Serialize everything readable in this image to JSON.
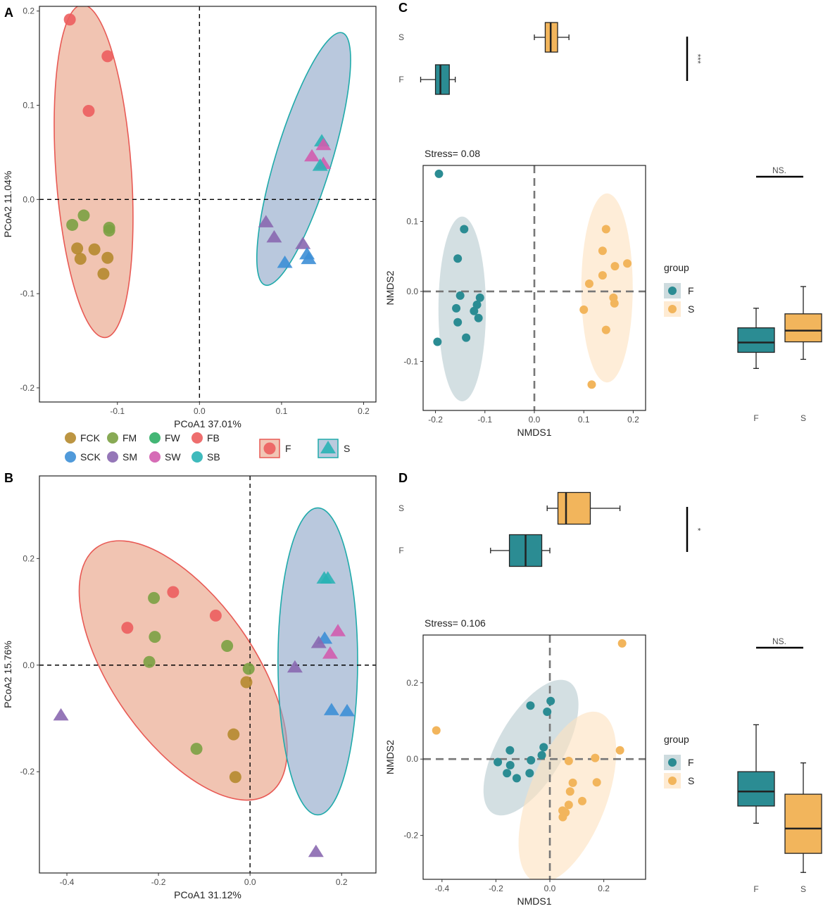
{
  "chart_data": [
    {
      "panel": "A",
      "type": "scatter",
      "title": "",
      "xlabel": "PCoA1 37.01%",
      "ylabel": "PCoA2 11.04%",
      "xlim": [
        -0.195,
        0.215
      ],
      "ylim": [
        -0.215,
        0.205
      ],
      "xticks": [
        -0.1,
        0.0,
        0.1,
        0.2
      ],
      "xtick_labels": [
        "-0.1",
        "0.0",
        "0.1",
        "0.2"
      ],
      "yticks": [
        -0.2,
        -0.1,
        0.0,
        0.1,
        0.2
      ],
      "ytick_labels": [
        "-0.2",
        "-0.1",
        "0.0",
        "0.1",
        "0.2"
      ],
      "ellipses": [
        {
          "group": "F",
          "cx": -0.129,
          "cy": 0.03,
          "rx": 0.046,
          "ry": 0.177,
          "angle_deg": -4
        },
        {
          "group": "S",
          "cx": 0.127,
          "cy": 0.043,
          "rx": 0.034,
          "ry": 0.14,
          "angle_deg": 17
        }
      ],
      "points": [
        {
          "x": -0.158,
          "y": 0.191,
          "group": "FB"
        },
        {
          "x": -0.112,
          "y": 0.152,
          "group": "FB"
        },
        {
          "x": -0.135,
          "y": 0.094,
          "group": "FB"
        },
        {
          "x": -0.141,
          "y": -0.017,
          "group": "FM"
        },
        {
          "x": -0.155,
          "y": -0.027,
          "group": "FM"
        },
        {
          "x": -0.11,
          "y": -0.03,
          "group": "FM"
        },
        {
          "x": -0.11,
          "y": -0.033,
          "group": "FM"
        },
        {
          "x": -0.149,
          "y": -0.052,
          "group": "FCK"
        },
        {
          "x": -0.128,
          "y": -0.053,
          "group": "FCK"
        },
        {
          "x": -0.145,
          "y": -0.063,
          "group": "FCK"
        },
        {
          "x": -0.112,
          "y": -0.062,
          "group": "FCK"
        },
        {
          "x": -0.117,
          "y": -0.079,
          "group": "FCK"
        },
        {
          "x": 0.149,
          "y": 0.062,
          "group": "SB",
          "marker": "triangle"
        },
        {
          "x": 0.151,
          "y": 0.058,
          "group": "SW",
          "marker": "triangle"
        },
        {
          "x": 0.137,
          "y": 0.046,
          "group": "SW",
          "marker": "triangle"
        },
        {
          "x": 0.151,
          "y": 0.038,
          "group": "SW",
          "marker": "triangle"
        },
        {
          "x": 0.147,
          "y": 0.036,
          "group": "SB",
          "marker": "triangle"
        },
        {
          "x": 0.081,
          "y": -0.024,
          "group": "SM",
          "marker": "triangle"
        },
        {
          "x": 0.091,
          "y": -0.04,
          "group": "SM",
          "marker": "triangle"
        },
        {
          "x": 0.126,
          "y": -0.047,
          "group": "SM",
          "marker": "triangle"
        },
        {
          "x": 0.131,
          "y": -0.058,
          "group": "SCK",
          "marker": "triangle"
        },
        {
          "x": 0.133,
          "y": -0.063,
          "group": "SCK",
          "marker": "triangle"
        },
        {
          "x": 0.104,
          "y": -0.067,
          "group": "SCK",
          "marker": "triangle"
        }
      ]
    },
    {
      "panel": "B",
      "type": "scatter",
      "title": "",
      "xlabel": "PCoA1 31.12%",
      "ylabel": "PCoA2 15.76%",
      "xlim": [
        -0.46,
        0.275
      ],
      "ylim": [
        -0.39,
        0.355
      ],
      "xticks": [
        -0.4,
        -0.2,
        0.0,
        0.2
      ],
      "xtick_labels": [
        "-0.4",
        "-0.2",
        "0.0",
        "0.2"
      ],
      "yticks": [
        -0.2,
        0.0,
        0.2
      ],
      "ytick_labels": [
        "-0.2",
        "0.0",
        "0.2"
      ],
      "ellipses": [
        {
          "group": "F",
          "cx": -0.146,
          "cy": -0.01,
          "rx": 0.155,
          "ry": 0.282,
          "angle_deg": -35
        },
        {
          "group": "S",
          "cx": 0.148,
          "cy": 0.007,
          "rx": 0.087,
          "ry": 0.288,
          "angle_deg": 0
        }
      ],
      "points": [
        {
          "x": -0.168,
          "y": 0.137,
          "group": "FB"
        },
        {
          "x": -0.075,
          "y": 0.093,
          "group": "FB"
        },
        {
          "x": -0.268,
          "y": 0.07,
          "group": "FB"
        },
        {
          "x": -0.21,
          "y": 0.126,
          "group": "FM"
        },
        {
          "x": -0.208,
          "y": 0.053,
          "group": "FM"
        },
        {
          "x": -0.05,
          "y": 0.036,
          "group": "FM"
        },
        {
          "x": -0.22,
          "y": 0.006,
          "group": "FM"
        },
        {
          "x": -0.003,
          "y": -0.007,
          "group": "FM"
        },
        {
          "x": -0.117,
          "y": -0.157,
          "group": "FM"
        },
        {
          "x": -0.008,
          "y": -0.032,
          "group": "FCK"
        },
        {
          "x": -0.036,
          "y": -0.13,
          "group": "FCK"
        },
        {
          "x": -0.032,
          "y": -0.21,
          "group": "FCK"
        },
        {
          "x": 0.162,
          "y": 0.163,
          "group": "SB",
          "marker": "triangle"
        },
        {
          "x": 0.17,
          "y": 0.163,
          "group": "SB",
          "marker": "triangle"
        },
        {
          "x": 0.192,
          "y": 0.064,
          "group": "SW",
          "marker": "triangle"
        },
        {
          "x": 0.163,
          "y": 0.05,
          "group": "SCK",
          "marker": "triangle"
        },
        {
          "x": 0.15,
          "y": 0.042,
          "group": "SM",
          "marker": "triangle"
        },
        {
          "x": 0.175,
          "y": 0.022,
          "group": "SW",
          "marker": "triangle"
        },
        {
          "x": 0.098,
          "y": -0.004,
          "group": "SM",
          "marker": "triangle"
        },
        {
          "x": 0.178,
          "y": -0.084,
          "group": "SCK",
          "marker": "triangle"
        },
        {
          "x": 0.212,
          "y": -0.086,
          "group": "SCK",
          "marker": "triangle"
        },
        {
          "x": -0.413,
          "y": -0.094,
          "group": "SM",
          "marker": "triangle"
        },
        {
          "x": 0.144,
          "y": -0.35,
          "group": "SM",
          "marker": "triangle"
        }
      ]
    },
    {
      "panel": "C",
      "type": "scatter",
      "title": "Stress= 0.08",
      "xlabel": "NMDS1",
      "ylabel": "NMDS2",
      "xlim": [
        -0.225,
        0.225
      ],
      "ylim": [
        -0.17,
        0.18
      ],
      "xticks": [
        -0.2,
        -0.1,
        0.0,
        0.1,
        0.2
      ],
      "xtick_labels": [
        "-0.2",
        "-0.1",
        "0.0",
        "0.1",
        "0.2"
      ],
      "yticks": [
        -0.1,
        0.0,
        0.1
      ],
      "ytick_labels": [
        "-0.1",
        "0.0",
        "0.1"
      ],
      "ellipses": [
        {
          "group": "F",
          "cx": -0.146,
          "cy": -0.025,
          "rx": 0.048,
          "ry": 0.132,
          "angle_deg": 0
        },
        {
          "group": "S",
          "cx": 0.147,
          "cy": 0.005,
          "rx": 0.052,
          "ry": 0.135,
          "angle_deg": 0
        }
      ],
      "points": [
        {
          "x": -0.193,
          "y": 0.168,
          "group": "F"
        },
        {
          "x": -0.142,
          "y": 0.089,
          "group": "F"
        },
        {
          "x": -0.155,
          "y": 0.047,
          "group": "F"
        },
        {
          "x": -0.15,
          "y": -0.006,
          "group": "F"
        },
        {
          "x": -0.158,
          "y": -0.024,
          "group": "F"
        },
        {
          "x": -0.155,
          "y": -0.044,
          "group": "F"
        },
        {
          "x": -0.138,
          "y": -0.066,
          "group": "F"
        },
        {
          "x": -0.196,
          "y": -0.072,
          "group": "F"
        },
        {
          "x": -0.11,
          "y": -0.009,
          "group": "F"
        },
        {
          "x": -0.116,
          "y": -0.019,
          "group": "F"
        },
        {
          "x": -0.122,
          "y": -0.028,
          "group": "F"
        },
        {
          "x": -0.113,
          "y": -0.038,
          "group": "F"
        },
        {
          "x": 0.145,
          "y": 0.089,
          "group": "S"
        },
        {
          "x": 0.138,
          "y": 0.058,
          "group": "S"
        },
        {
          "x": 0.188,
          "y": 0.04,
          "group": "S"
        },
        {
          "x": 0.163,
          "y": 0.036,
          "group": "S"
        },
        {
          "x": 0.138,
          "y": 0.023,
          "group": "S"
        },
        {
          "x": 0.111,
          "y": 0.011,
          "group": "S"
        },
        {
          "x": 0.16,
          "y": -0.009,
          "group": "S"
        },
        {
          "x": 0.162,
          "y": -0.017,
          "group": "S"
        },
        {
          "x": 0.1,
          "y": -0.026,
          "group": "S"
        },
        {
          "x": 0.145,
          "y": -0.055,
          "group": "S"
        },
        {
          "x": 0.116,
          "y": -0.133,
          "group": "S"
        }
      ],
      "legend": {
        "title": "group",
        "entries": [
          "F",
          "S"
        ]
      },
      "top_boxplot": {
        "orientation": "horizontal",
        "axis": "NMDS1",
        "categories": [
          "S",
          "F"
        ],
        "boxes": [
          {
            "group": "S",
            "min": 0.0,
            "q1": 0.022,
            "median": 0.033,
            "q3": 0.047,
            "max": 0.07
          },
          {
            "group": "F",
            "min": -0.23,
            "q1": -0.2,
            "median": -0.19,
            "q3": -0.172,
            "max": -0.16
          }
        ],
        "significance": "***"
      },
      "side_boxplot": {
        "orientation": "vertical",
        "axis": "NMDS2",
        "categories": [
          "F",
          "S"
        ],
        "boxes": [
          {
            "group": "F",
            "min": -0.11,
            "q1": -0.087,
            "median": -0.073,
            "q3": -0.052,
            "max": -0.024
          },
          {
            "group": "S",
            "min": -0.097,
            "q1": -0.072,
            "median": -0.056,
            "q3": -0.032,
            "max": 0.007
          }
        ],
        "significance": "NS."
      }
    },
    {
      "panel": "D",
      "type": "scatter",
      "title": "Stress= 0.106",
      "xlabel": "NMDS1",
      "ylabel": "NMDS2",
      "xlim": [
        -0.47,
        0.355
      ],
      "ylim": [
        -0.315,
        0.325
      ],
      "xticks": [
        -0.4,
        -0.2,
        0.0,
        0.2
      ],
      "xtick_labels": [
        "-0.4",
        "-0.2",
        "0.0",
        "0.2"
      ],
      "yticks": [
        -0.2,
        0.0,
        0.2
      ],
      "ytick_labels": [
        "-0.2",
        "0.0",
        "0.2"
      ],
      "ellipses": [
        {
          "group": "F",
          "cx": -0.07,
          "cy": 0.03,
          "rx": 0.122,
          "ry": 0.199,
          "angle_deg": 30
        },
        {
          "group": "S",
          "cx": 0.065,
          "cy": -0.1,
          "rx": 0.145,
          "ry": 0.237,
          "angle_deg": 21
        }
      ],
      "points": [
        {
          "x": 0.003,
          "y": 0.152,
          "group": "F"
        },
        {
          "x": -0.072,
          "y": 0.14,
          "group": "F"
        },
        {
          "x": -0.01,
          "y": 0.124,
          "group": "F"
        },
        {
          "x": -0.148,
          "y": 0.023,
          "group": "F"
        },
        {
          "x": -0.023,
          "y": 0.031,
          "group": "F"
        },
        {
          "x": -0.03,
          "y": 0.01,
          "group": "F"
        },
        {
          "x": -0.07,
          "y": -0.003,
          "group": "F"
        },
        {
          "x": -0.193,
          "y": -0.008,
          "group": "F"
        },
        {
          "x": -0.147,
          "y": -0.016,
          "group": "F"
        },
        {
          "x": -0.159,
          "y": -0.037,
          "group": "F"
        },
        {
          "x": -0.075,
          "y": -0.037,
          "group": "F"
        },
        {
          "x": -0.123,
          "y": -0.05,
          "group": "F"
        },
        {
          "x": 0.268,
          "y": 0.303,
          "group": "S"
        },
        {
          "x": -0.421,
          "y": 0.075,
          "group": "S"
        },
        {
          "x": 0.26,
          "y": 0.023,
          "group": "S"
        },
        {
          "x": 0.168,
          "y": 0.003,
          "group": "S"
        },
        {
          "x": 0.07,
          "y": -0.005,
          "group": "S"
        },
        {
          "x": 0.085,
          "y": -0.062,
          "group": "S"
        },
        {
          "x": 0.174,
          "y": -0.061,
          "group": "S"
        },
        {
          "x": 0.075,
          "y": -0.085,
          "group": "S"
        },
        {
          "x": 0.12,
          "y": -0.11,
          "group": "S"
        },
        {
          "x": 0.07,
          "y": -0.12,
          "group": "S"
        },
        {
          "x": 0.047,
          "y": -0.135,
          "group": "S"
        },
        {
          "x": 0.058,
          "y": -0.14,
          "group": "S"
        },
        {
          "x": 0.048,
          "y": -0.152,
          "group": "S"
        }
      ],
      "legend": {
        "title": "group",
        "entries": [
          "F",
          "S"
        ]
      },
      "top_boxplot": {
        "orientation": "horizontal",
        "axis": "NMDS1",
        "categories": [
          "S",
          "F"
        ],
        "boxes": [
          {
            "group": "S",
            "min": -0.01,
            "q1": 0.03,
            "median": 0.06,
            "q3": 0.15,
            "max": 0.26
          },
          {
            "group": "F",
            "min": -0.22,
            "q1": -0.15,
            "median": -0.09,
            "q3": -0.03,
            "max": 0.0
          }
        ],
        "significance": "*"
      },
      "side_boxplot": {
        "orientation": "vertical",
        "axis": "NMDS2",
        "categories": [
          "F",
          "S"
        ],
        "boxes": [
          {
            "group": "F",
            "min": -0.168,
            "q1": -0.123,
            "median": -0.085,
            "q3": -0.033,
            "max": 0.09
          },
          {
            "group": "S",
            "min": -0.297,
            "q1": -0.247,
            "median": -0.182,
            "q3": -0.092,
            "max": -0.01
          }
        ],
        "significance": "NS."
      }
    }
  ],
  "legend_AB": {
    "groups": [
      {
        "label": "FCK",
        "color": "#b5892e"
      },
      {
        "label": "FM",
        "color": "#7ba143"
      },
      {
        "label": "FW",
        "color": "#2fae66"
      },
      {
        "label": "FB",
        "color": "#ec5e5e"
      },
      {
        "label": "SCK",
        "color": "#3d8fd6"
      },
      {
        "label": "SM",
        "color": "#8a68b0"
      },
      {
        "label": "SW",
        "color": "#d25cae"
      },
      {
        "label": "SB",
        "color": "#2ab3b5"
      }
    ],
    "ellipse_groups": [
      {
        "label": "F",
        "color": "#ec5e5e"
      },
      {
        "label": "S",
        "color": "#2ab3b5"
      }
    ]
  },
  "colors": {
    "ellipse_F_fill": "#e8a083",
    "ellipse_F_stroke": "#e85a55",
    "ellipse_S_fill": "#8ea6c8",
    "ellipse_S_stroke": "#1eaaaa",
    "nmds_F": "#2b8c93",
    "nmds_S": "#f2b55c",
    "nmds_F_ellipse": "#b8ccd0",
    "nmds_S_ellipse": "#fde2c0"
  }
}
